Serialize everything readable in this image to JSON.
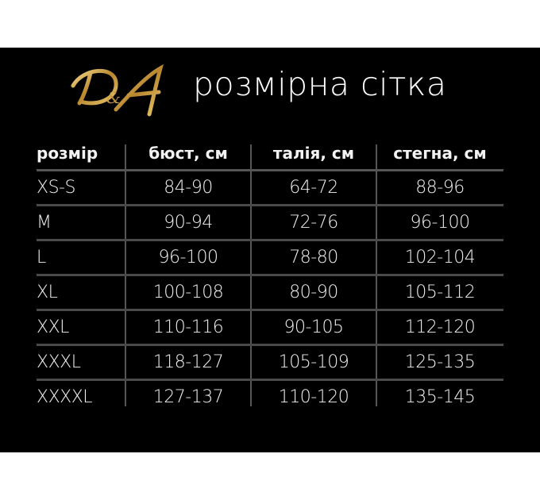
{
  "logo": {
    "text": "D&A",
    "color": "#c9a14a"
  },
  "title": "розмірна сітка",
  "table": {
    "headers": [
      "розмір",
      "бюст, см",
      "талія, см",
      "стегна, см"
    ],
    "rows": [
      [
        "XS-S",
        "84-90",
        "64-72",
        "88-96"
      ],
      [
        "M",
        "90-94",
        "72-76",
        "96-100"
      ],
      [
        "L",
        "96-100",
        "78-80",
        "102-104"
      ],
      [
        "XL",
        "100-108",
        "80-90",
        "105-112"
      ],
      [
        "XXL",
        "110-116",
        "90-105",
        "112-120"
      ],
      [
        "XXXL",
        "118-127",
        "105-109",
        "125-135"
      ],
      [
        "XXXXL",
        "127-137",
        "110-120",
        "135-145"
      ]
    ]
  }
}
